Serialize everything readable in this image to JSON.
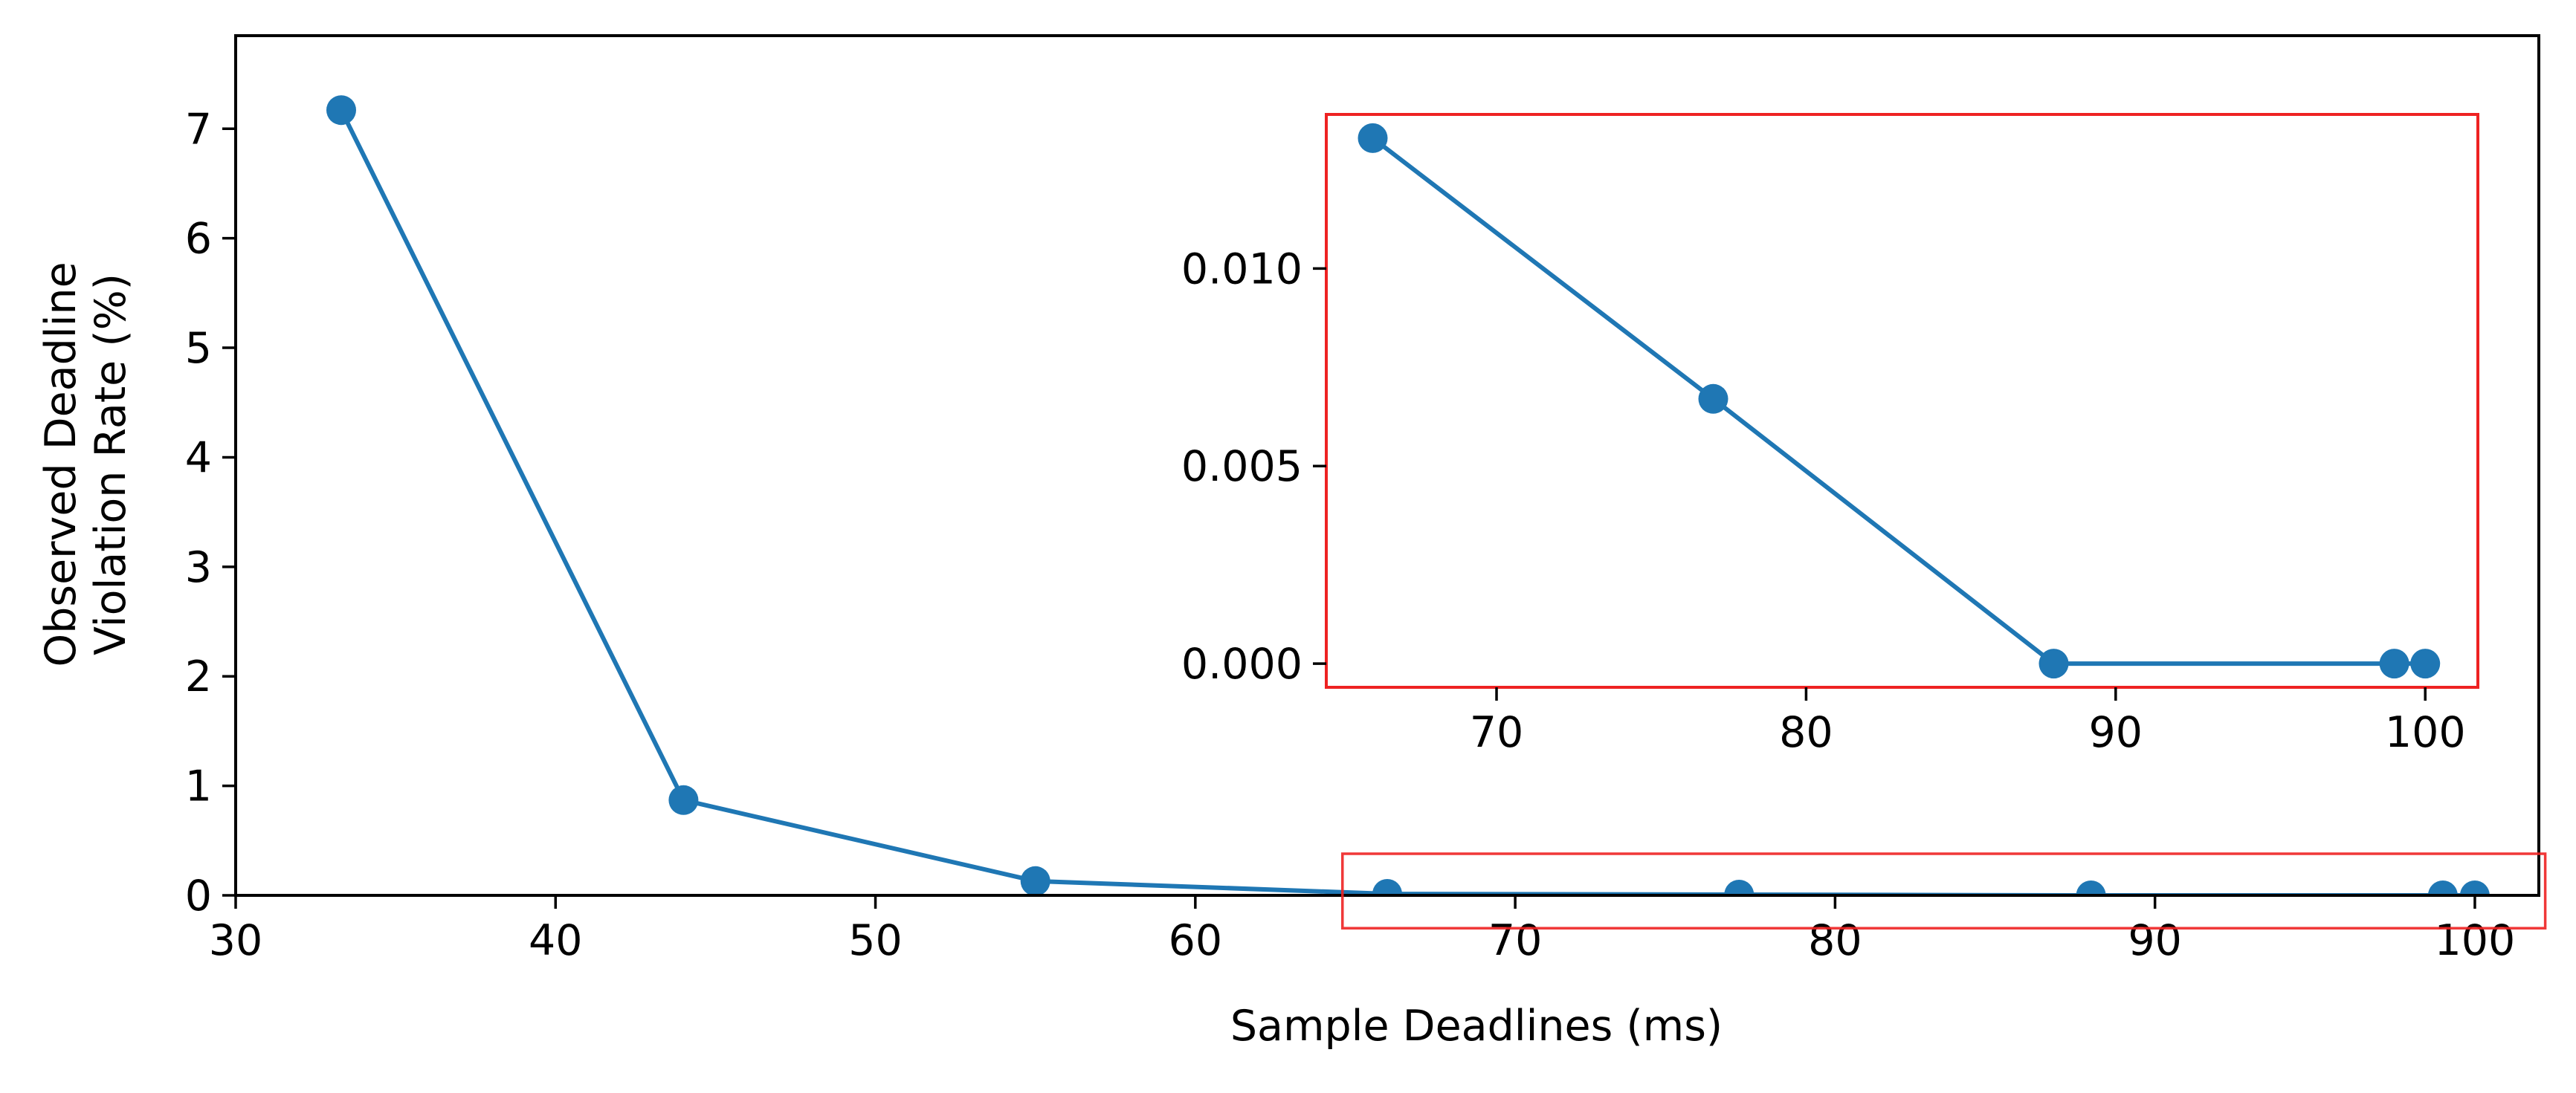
{
  "colors": {
    "series": "#1f77b4",
    "inset_frame": "#ee2222",
    "axis": "#000000",
    "background": "#ffffff"
  },
  "chart_data": [
    {
      "type": "line",
      "role": "main",
      "xlabel": "Sample Deadlines (ms)",
      "ylabel_lines": [
        "Observed Deadline",
        "Violation Rate (%)"
      ],
      "xlim": [
        30,
        102
      ],
      "ylim": [
        0,
        7.85
      ],
      "xticks": [
        30,
        40,
        50,
        60,
        70,
        80,
        90,
        100
      ],
      "yticks": [
        0,
        1,
        2,
        3,
        4,
        5,
        6,
        7
      ],
      "x": [
        33.3,
        44,
        55,
        66,
        77,
        88,
        99,
        100
      ],
      "y": [
        7.17,
        0.87,
        0.13,
        0.0133,
        0.0067,
        0.0,
        0.0,
        0.0
      ],
      "marker": "circle",
      "grid": false,
      "zoom_region": {
        "x": [
          64.6,
          102.2
        ],
        "y": [
          -0.3,
          0.38
        ]
      }
    },
    {
      "type": "line",
      "role": "inset",
      "xlim": [
        64.5,
        101.7
      ],
      "ylim": [
        -0.0006,
        0.0139
      ],
      "xticks": [
        70,
        80,
        90,
        100
      ],
      "yticks": [
        0.0,
        0.005,
        0.01
      ],
      "ytick_labels": [
        "0.000",
        "0.005",
        "0.010"
      ],
      "x": [
        66,
        77,
        88,
        99,
        100
      ],
      "y": [
        0.0133,
        0.0067,
        0.0,
        0.0,
        0.0
      ],
      "marker": "circle",
      "grid": false
    }
  ]
}
